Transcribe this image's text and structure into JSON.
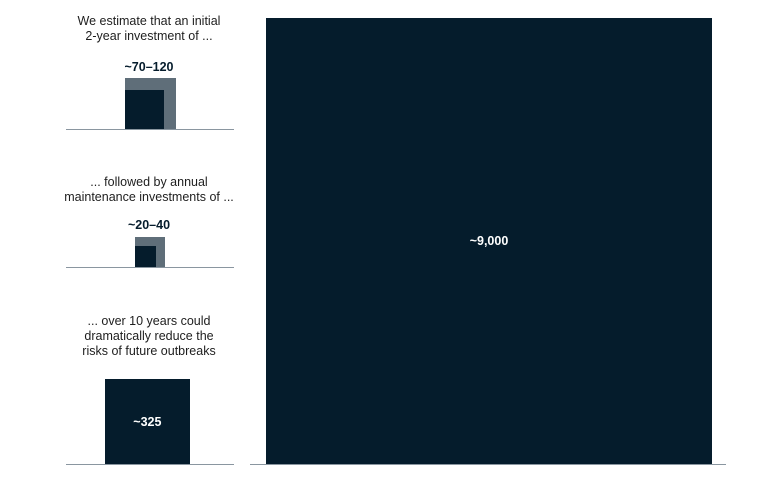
{
  "chart_data": {
    "type": "area",
    "colors": {
      "range": "#5f6e79",
      "solid": "#051c2c"
    },
    "panels": [
      {
        "caption": [
          "We estimate that an initial",
          "2-year investment of ..."
        ],
        "label": "~70–120",
        "low": 70,
        "high": 120
      },
      {
        "caption": [
          "... followed by annual",
          "maintenance investments of ..."
        ],
        "label": "~20–40",
        "low": 20,
        "high": 40
      },
      {
        "caption": [
          "... over 10 years could",
          "dramatically reduce the",
          "risks of future outbreaks"
        ],
        "label": "~325",
        "value": 325
      }
    ],
    "big": {
      "label": "~9,000",
      "value": 9000
    }
  }
}
